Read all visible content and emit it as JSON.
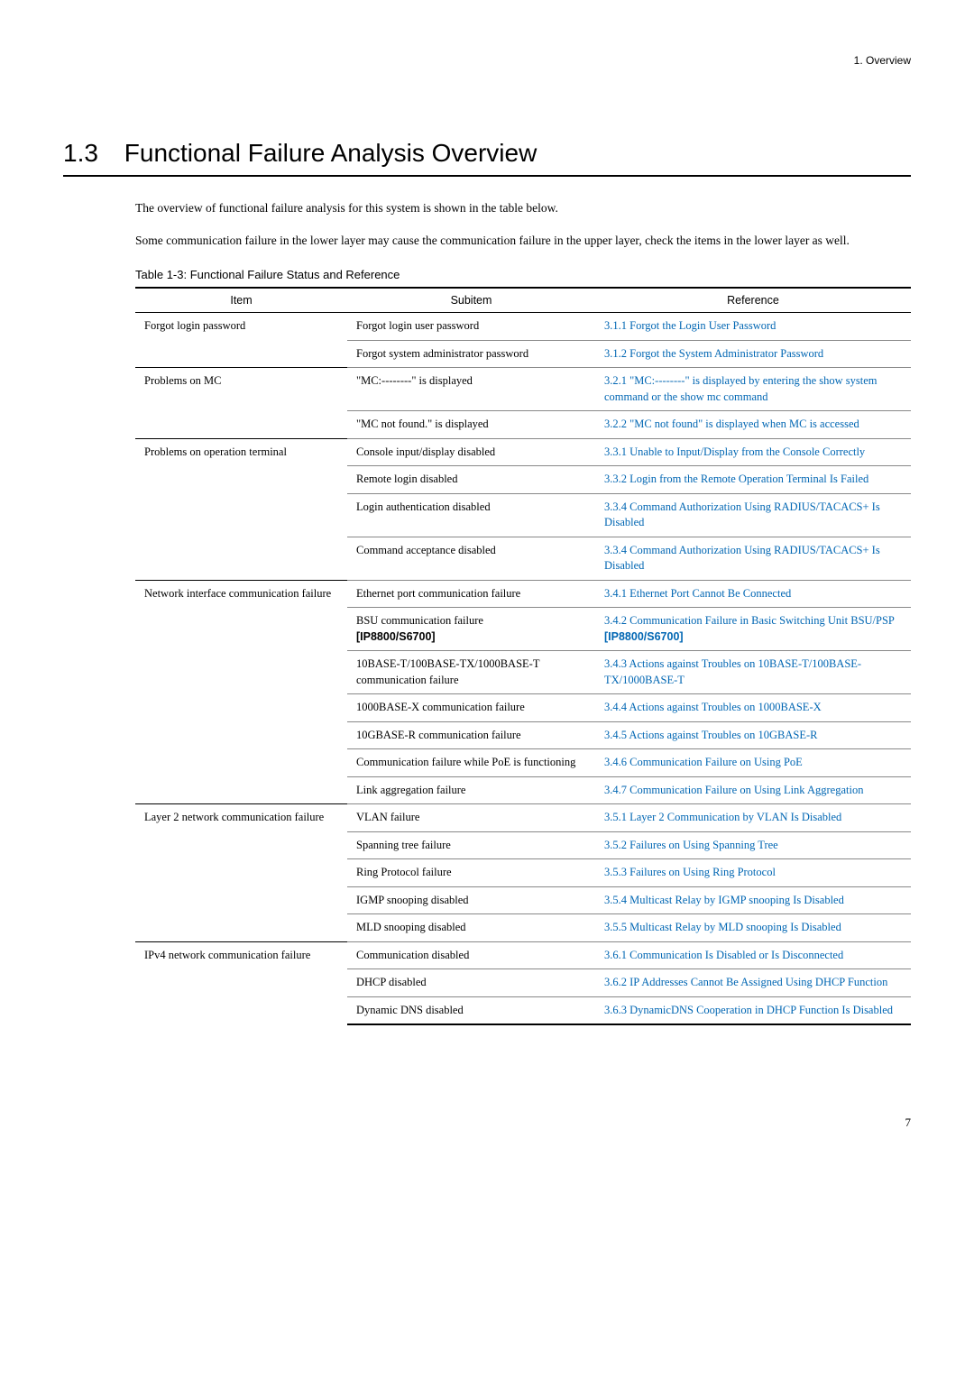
{
  "header": {
    "breadcrumb": "1.  Overview"
  },
  "section": {
    "number": "1.3",
    "title": "Functional Failure Analysis Overview",
    "intro_p1": "The overview of functional failure analysis for this system is shown in the table below.",
    "intro_p2": "Some communication failure in the lower layer may cause the communication failure in the upper layer, check the items in the lower layer as well."
  },
  "table": {
    "caption": "Table 1-3: Functional Failure Status and Reference",
    "head": {
      "c1": "Item",
      "c2": "Subitem",
      "c3": "Reference"
    },
    "rows": {
      "r1_item": "Forgot login password",
      "r1_sub": "Forgot login user password",
      "r1_ref": "3.1.1 Forgot the Login User Password",
      "r2_sub": "Forgot system administrator password",
      "r2_ref": "3.1.2 Forgot the System Administrator Password",
      "r3_item": "Problems on MC",
      "r3_sub": "\"MC:--------\" is displayed",
      "r3_ref": "3.2.1 \"MC:--------\" is displayed by entering the show system command or the show mc command",
      "r4_sub": "\"MC not found.\" is displayed",
      "r4_ref": "3.2.2 \"MC not found\" is displayed when MC is accessed",
      "r5_item": "Problems on operation terminal",
      "r5_sub": "Console input/display disabled",
      "r5_ref": "3.3.1 Unable to Input/Display from the Console Correctly",
      "r6_sub": "Remote login disabled",
      "r6_ref": "3.3.2 Login from the Remote Operation Terminal Is Failed",
      "r7_sub": "Login authentication disabled",
      "r7_ref": "3.3.4 Command Authorization Using RADIUS/TACACS+ Is Disabled",
      "r8_sub": "Command acceptance disabled",
      "r8_ref": "3.3.4 Command Authorization Using RADIUS/TACACS+ Is Disabled",
      "r9_item": "Network interface communication failure",
      "r9_sub": "Ethernet port communication failure",
      "r9_ref": "3.4.1 Ethernet Port Cannot Be Connected",
      "r10_sub_a": "BSU communication failure",
      "r10_sub_b": "[IP8800/S6700]",
      "r10_ref_a": "3.4.2 Communication Failure in Basic Switching Unit BSU/PSP",
      "r10_ref_b": " [IP8800/S6700]",
      "r11_sub": "10BASE-T/100BASE-TX/1000BASE-T communication failure",
      "r11_ref": "3.4.3 Actions against Troubles on 10BASE-T/100BASE-TX/1000BASE-T",
      "r12_sub": "1000BASE-X communication failure",
      "r12_ref": "3.4.4 Actions against Troubles on 1000BASE-X",
      "r13_sub": "10GBASE-R communication failure",
      "r13_ref": "3.4.5 Actions against Troubles on 10GBASE-R",
      "r14_sub": "Communication failure while PoE is functioning",
      "r14_ref": "3.4.6 Communication Failure on Using PoE",
      "r15_sub": "Link aggregation failure",
      "r15_ref": "3.4.7 Communication Failure on Using Link Aggregation",
      "r16_item": "Layer 2 network communication failure",
      "r16_sub": "VLAN failure",
      "r16_ref": "3.5.1 Layer 2 Communication by VLAN Is Disabled",
      "r17_sub": "Spanning tree failure",
      "r17_ref": "3.5.2 Failures on Using Spanning Tree",
      "r18_sub": "Ring Protocol failure",
      "r18_ref": "3.5.3 Failures on Using Ring Protocol",
      "r19_sub": "IGMP snooping disabled",
      "r19_ref": "3.5.4 Multicast Relay by IGMP snooping Is Disabled",
      "r20_sub": "MLD snooping disabled",
      "r20_ref": "3.5.5 Multicast Relay by MLD snooping Is Disabled",
      "r21_item": "IPv4 network communication failure",
      "r21_sub": "Communication disabled",
      "r21_ref": "3.6.1 Communication Is Disabled or Is Disconnected",
      "r22_sub": "DHCP disabled",
      "r22_ref": "3.6.2 IP Addresses Cannot Be Assigned Using DHCP Function",
      "r23_sub": "Dynamic DNS disabled",
      "r23_ref": "3.6.3 DynamicDNS Cooperation in DHCP Function Is Disabled"
    }
  },
  "footer": {
    "page": "7"
  }
}
